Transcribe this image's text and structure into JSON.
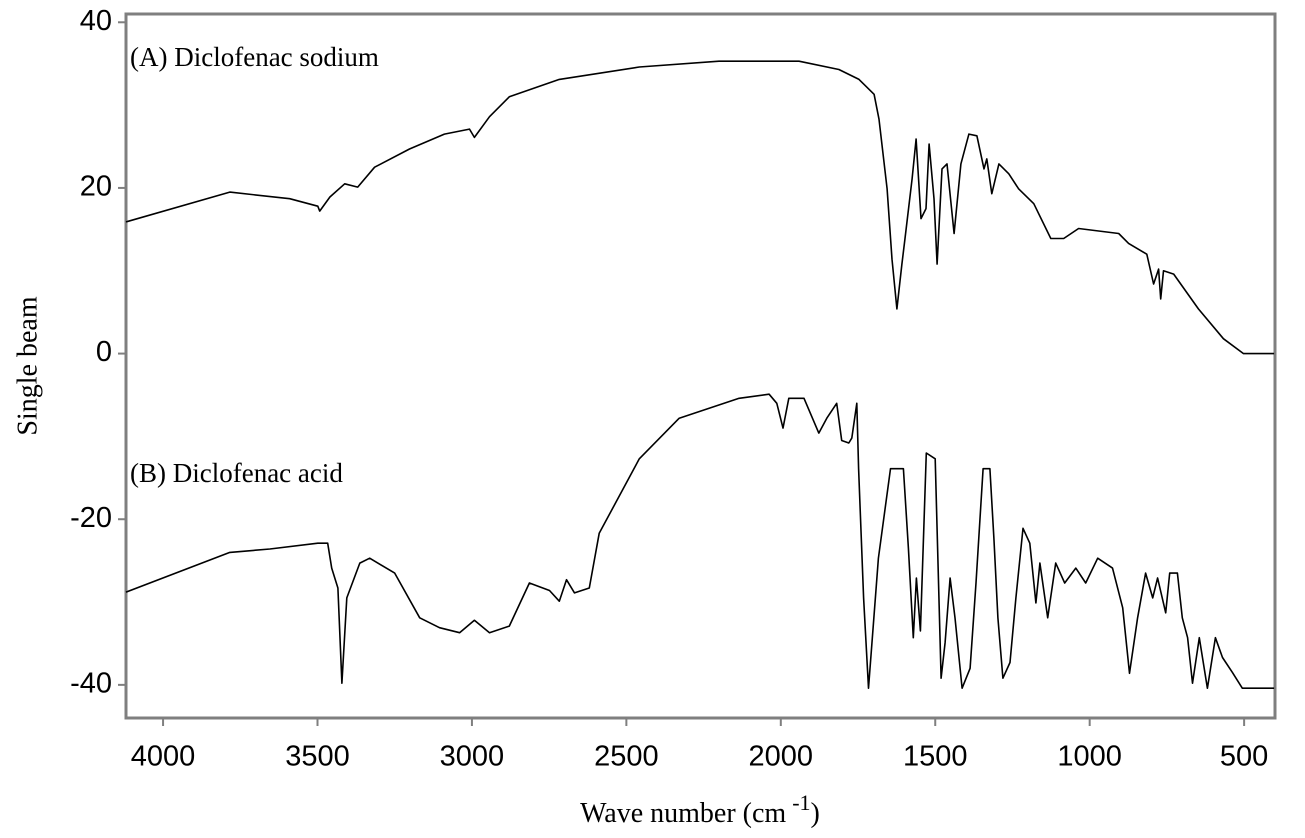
{
  "chart_data": {
    "type": "line",
    "xlabel": {
      "text": "Wave number (cm",
      "superscript": "-1",
      "suffix": ")"
    },
    "ylabel": "Single beam",
    "annotations": [
      "(A)  Diclofenac   sodium",
      "(B)  Diclofenac   acid"
    ],
    "xlim": [
      4120,
      400
    ],
    "xticks": [
      4000,
      3500,
      3000,
      2500,
      2000,
      1500,
      1000,
      500
    ],
    "ylim": [
      -44,
      41
    ],
    "yticks": [
      -40,
      -20,
      0,
      20,
      40
    ],
    "series": [
      {
        "color": "#000000",
        "x": [
          4120,
          3784,
          3590,
          3499,
          3493,
          3460,
          3412,
          3370,
          3315,
          3202,
          3089,
          3008,
          2992,
          2943,
          2879,
          2717,
          2458,
          2200,
          1941,
          1812,
          1747,
          1698,
          1682,
          1656,
          1640,
          1624,
          1608,
          1598,
          1575,
          1562,
          1546,
          1530,
          1520,
          1504,
          1494,
          1478,
          1462,
          1439,
          1417,
          1391,
          1365,
          1342,
          1333,
          1317,
          1294,
          1262,
          1230,
          1181,
          1126,
          1084,
          1036,
          906,
          874,
          815,
          793,
          777,
          770,
          761,
          728,
          648,
          567,
          502,
          403
        ],
        "values": [
          15.9,
          19.5,
          18.7,
          17.8,
          17.2,
          18.9,
          20.5,
          20.1,
          22.5,
          24.7,
          26.5,
          27.1,
          26.1,
          28.6,
          31.0,
          33.1,
          34.6,
          35.3,
          35.3,
          34.3,
          33.1,
          31.3,
          28.3,
          19.9,
          11.4,
          5.4,
          10.8,
          13.9,
          21.1,
          25.9,
          16.3,
          17.5,
          25.3,
          18.7,
          10.8,
          22.3,
          22.9,
          14.5,
          22.9,
          26.5,
          26.3,
          22.3,
          23.5,
          19.3,
          22.9,
          21.7,
          19.9,
          18.1,
          13.9,
          13.9,
          15.1,
          14.5,
          13.3,
          12.0,
          8.4,
          10.2,
          6.6,
          10.0,
          9.6,
          5.4,
          1.8,
          0,
          0
        ]
      },
      {
        "color": "#000000",
        "x": [
          4120,
          3784,
          3654,
          3499,
          3467,
          3454,
          3434,
          3421,
          3405,
          3363,
          3331,
          3250,
          3169,
          3105,
          3040,
          2992,
          2943,
          2879,
          2814,
          2749,
          2717,
          2694,
          2668,
          2620,
          2588,
          2458,
          2329,
          2135,
          2038,
          2013,
          1993,
          1974,
          1925,
          1877,
          1851,
          1819,
          1803,
          1780,
          1770,
          1754,
          1748,
          1732,
          1716,
          1684,
          1645,
          1603,
          1587,
          1571,
          1561,
          1548,
          1529,
          1500,
          1481,
          1468,
          1452,
          1436,
          1413,
          1387,
          1368,
          1345,
          1323,
          1310,
          1297,
          1281,
          1258,
          1239,
          1216,
          1194,
          1174,
          1161,
          1136,
          1110,
          1081,
          1045,
          1013,
          974,
          926,
          893,
          871,
          845,
          819,
          796,
          780,
          754,
          741,
          716,
          700,
          683,
          667,
          645,
          619,
          593,
          570,
          538,
          506,
          403
        ],
        "values": [
          -28.8,
          -24.0,
          -23.6,
          -22.9,
          -22.9,
          -25.9,
          -28.3,
          -39.8,
          -29.5,
          -25.3,
          -24.7,
          -26.5,
          -31.9,
          -33.1,
          -33.7,
          -32.2,
          -33.7,
          -32.9,
          -27.7,
          -28.6,
          -29.9,
          -27.3,
          -28.9,
          -28.3,
          -21.7,
          -12.7,
          -7.8,
          -5.4,
          -4.9,
          -6.0,
          -9.0,
          -5.4,
          -5.4,
          -9.6,
          -7.8,
          -6.0,
          -10.5,
          -10.8,
          -10.2,
          -6.0,
          -13.9,
          -29.5,
          -40.4,
          -24.7,
          -13.9,
          -13.9,
          -23.5,
          -34.3,
          -27.1,
          -33.5,
          -12.0,
          -12.7,
          -39.2,
          -34.9,
          -27.1,
          -31.9,
          -40.4,
          -38.0,
          -27.7,
          -13.9,
          -13.9,
          -22.3,
          -31.9,
          -39.2,
          -37.3,
          -29.5,
          -21.1,
          -22.9,
          -30.1,
          -25.3,
          -31.9,
          -25.3,
          -27.7,
          -25.9,
          -27.7,
          -24.7,
          -25.9,
          -30.7,
          -38.6,
          -31.9,
          -26.5,
          -29.5,
          -27.1,
          -31.3,
          -26.5,
          -26.5,
          -31.9,
          -34.3,
          -39.8,
          -34.3,
          -40.4,
          -34.3,
          -36.7,
          -38.5,
          -40.4,
          -40.4
        ]
      }
    ]
  }
}
